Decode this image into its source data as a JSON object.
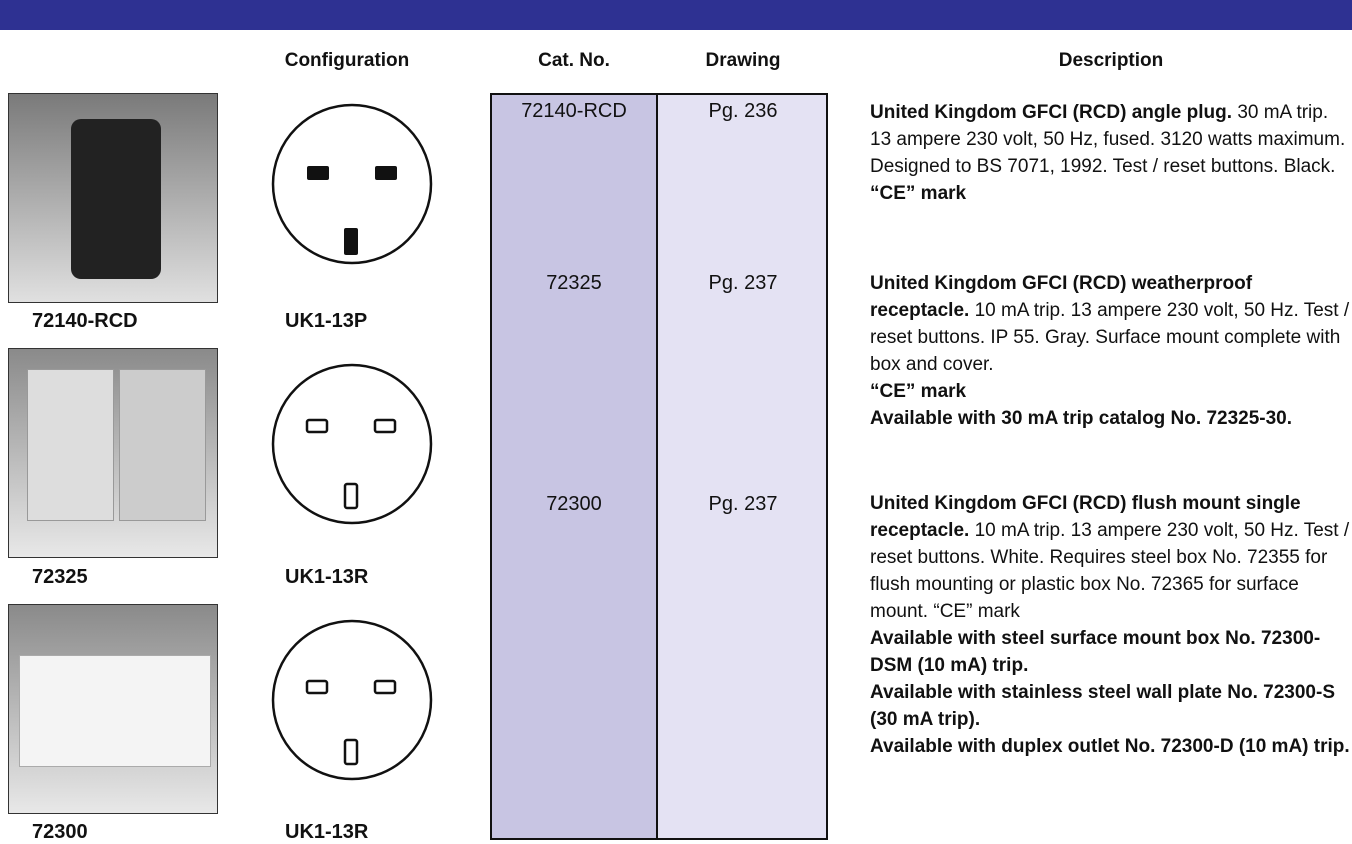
{
  "header": {
    "columns": {
      "configuration": "Configuration",
      "cat_no": "Cat. No.",
      "drawing": "Drawing",
      "description": "Description"
    }
  },
  "products": [
    {
      "photo_label": "72140-RCD",
      "configuration": "UK1-13P",
      "cat_no": "72140-RCD",
      "drawing": "Pg. 236",
      "description": {
        "title": "United Kingdom GFCI (RCD) angle plug.",
        "text": "30 mA trip. 13 ampere 230 volt, 50 Hz, fused. 3120 watts maximum. Designed to BS 7071, 1992. Test / reset buttons. Black.",
        "notes": [
          "“CE” mark"
        ]
      }
    },
    {
      "photo_label": "72325",
      "configuration": "UK1-13R",
      "cat_no": "72325",
      "drawing": "Pg. 237",
      "description": {
        "title": "United Kingdom GFCI (RCD) weatherproof receptacle.",
        "text": "10 mA trip. 13 ampere 230 volt, 50 Hz. Test / reset buttons. IP 55. Gray. Surface mount complete with box and cover.",
        "notes": [
          "“CE” mark",
          "Available with 30 mA trip catalog No. 72325-30."
        ]
      }
    },
    {
      "photo_label": "72300",
      "configuration": "UK1-13R",
      "cat_no": "72300",
      "drawing": "Pg. 237",
      "description": {
        "title": "United Kingdom GFCI (RCD) flush mount single receptacle.",
        "text": "10 mA trip. 13 ampere 230 volt, 50 Hz. Test / reset buttons. White. Requires steel box No. 72355 for flush mounting or plastic box No. 72365 for surface mount. “CE” mark",
        "notes": [
          "Available with steel surface mount box No. 72300-DSM (10 mA) trip.",
          "Available with stainless steel wall plate No. 72300-S (30 mA trip).",
          "Available with duplex outlet No. 72300-D (10 mA) trip."
        ]
      }
    }
  ]
}
